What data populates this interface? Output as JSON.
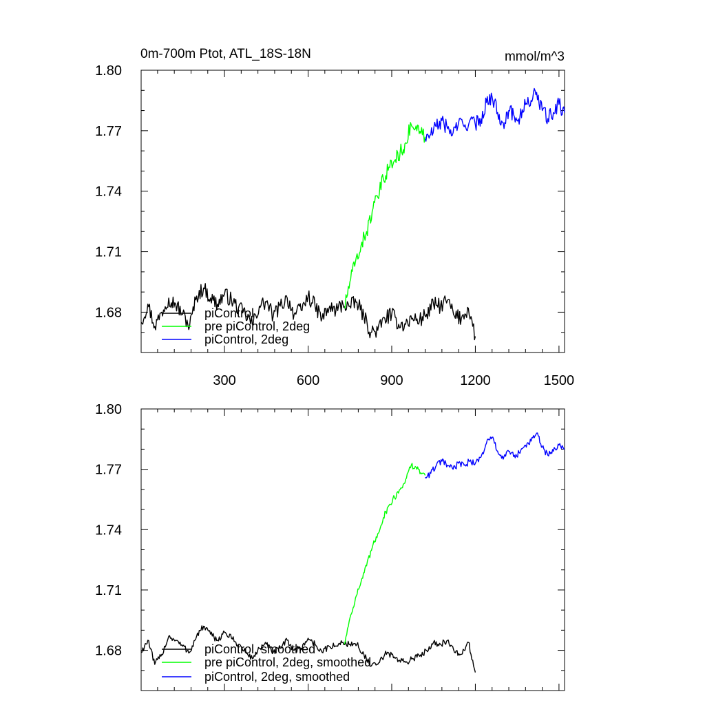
{
  "chart_data": [
    {
      "type": "line",
      "title": "0m-700m Ptot, ATL_18S-18N",
      "units": "mmol/m^3",
      "xlim": [
        1,
        1520
      ],
      "ylim": [
        1.66,
        1.8
      ],
      "x_ticks": [
        300,
        600,
        900,
        1200,
        1500
      ],
      "x_tick_labels": [
        "300",
        "600",
        "900",
        "1200",
        "1500"
      ],
      "y_ticks": [
        1.68,
        1.71,
        1.74,
        1.77,
        1.8
      ],
      "y_tick_labels": [
        "1.68",
        "1.71",
        "1.74",
        "1.77",
        "1.80"
      ],
      "legend_position": "bottom-left",
      "grid": false,
      "series": [
        {
          "name": "piControl",
          "color": "#000000",
          "x": [
            1,
            25,
            50,
            75,
            100,
            125,
            150,
            175,
            200,
            225,
            250,
            275,
            300,
            325,
            350,
            375,
            400,
            425,
            450,
            475,
            500,
            525,
            550,
            575,
            600,
            625,
            650,
            675,
            700,
            725,
            750,
            775,
            800,
            825,
            850,
            875,
            900,
            925,
            950,
            975,
            1000,
            1025,
            1050,
            1075,
            1100,
            1125,
            1150,
            1175,
            1200
          ],
          "y": [
            1.675,
            1.684,
            1.673,
            1.68,
            1.687,
            1.684,
            1.679,
            1.673,
            1.688,
            1.692,
            1.687,
            1.684,
            1.689,
            1.686,
            1.682,
            1.679,
            1.674,
            1.683,
            1.685,
            1.678,
            1.683,
            1.687,
            1.679,
            1.681,
            1.688,
            1.683,
            1.677,
            1.682,
            1.681,
            1.684,
            1.683,
            1.685,
            1.678,
            1.67,
            1.671,
            1.677,
            1.679,
            1.674,
            1.674,
            1.677,
            1.676,
            1.679,
            1.684,
            1.683,
            1.686,
            1.678,
            1.677,
            1.682,
            1.668
          ]
        },
        {
          "name": "pre piControl, 2deg",
          "color": "#00ff00",
          "x": [
            730,
            750,
            770,
            790,
            810,
            830,
            850,
            870,
            890,
            910,
            930,
            950,
            970,
            990,
            1010,
            1020
          ],
          "y": [
            1.682,
            1.695,
            1.705,
            1.713,
            1.72,
            1.73,
            1.737,
            1.746,
            1.752,
            1.755,
            1.759,
            1.764,
            1.773,
            1.77,
            1.768,
            1.767
          ]
        },
        {
          "name": "piControl, 2deg",
          "color": "#0000ff",
          "x": [
            1020,
            1040,
            1060,
            1080,
            1100,
            1120,
            1140,
            1160,
            1180,
            1200,
            1220,
            1240,
            1260,
            1280,
            1300,
            1320,
            1340,
            1360,
            1380,
            1400,
            1420,
            1440,
            1460,
            1480,
            1500,
            1520
          ],
          "y": [
            1.766,
            1.768,
            1.772,
            1.775,
            1.771,
            1.769,
            1.774,
            1.772,
            1.775,
            1.773,
            1.776,
            1.784,
            1.787,
            1.779,
            1.774,
            1.78,
            1.777,
            1.777,
            1.783,
            1.785,
            1.789,
            1.78,
            1.776,
            1.779,
            1.783,
            1.779
          ]
        }
      ]
    },
    {
      "type": "line",
      "title": "",
      "xlim": [
        1,
        1520
      ],
      "ylim": [
        1.66,
        1.8
      ],
      "x_ticks": [
        300,
        600,
        900,
        1200,
        1500
      ],
      "y_ticks": [
        1.68,
        1.71,
        1.74,
        1.77,
        1.8
      ],
      "y_tick_labels": [
        "1.68",
        "1.71",
        "1.74",
        "1.77",
        "1.80"
      ],
      "legend_position": "bottom-left",
      "grid": false,
      "series": [
        {
          "name": "piControl, smoothed",
          "color": "#000000",
          "x": [
            1,
            25,
            50,
            75,
            100,
            125,
            150,
            175,
            200,
            225,
            250,
            275,
            300,
            325,
            350,
            375,
            400,
            425,
            450,
            475,
            500,
            525,
            550,
            575,
            600,
            625,
            650,
            675,
            700,
            725,
            750,
            775,
            800,
            825,
            850,
            875,
            900,
            925,
            950,
            975,
            1000,
            1025,
            1050,
            1075,
            1100,
            1125,
            1150,
            1175,
            1200
          ],
          "y": [
            1.679,
            1.685,
            1.673,
            1.678,
            1.687,
            1.685,
            1.682,
            1.679,
            1.687,
            1.692,
            1.688,
            1.685,
            1.689,
            1.686,
            1.683,
            1.679,
            1.676,
            1.681,
            1.683,
            1.679,
            1.681,
            1.685,
            1.68,
            1.681,
            1.686,
            1.683,
            1.679,
            1.682,
            1.682,
            1.684,
            1.683,
            1.683,
            1.678,
            1.672,
            1.673,
            1.678,
            1.678,
            1.675,
            1.674,
            1.676,
            1.677,
            1.68,
            1.684,
            1.683,
            1.685,
            1.679,
            1.678,
            1.684,
            1.669
          ]
        },
        {
          "name": "pre piControl, 2deg, smoothed",
          "color": "#00ff00",
          "x": [
            730,
            750,
            770,
            790,
            810,
            830,
            850,
            870,
            890,
            910,
            930,
            950,
            970,
            990,
            1010,
            1020
          ],
          "y": [
            1.683,
            1.696,
            1.706,
            1.714,
            1.722,
            1.731,
            1.738,
            1.746,
            1.752,
            1.756,
            1.76,
            1.765,
            1.772,
            1.77,
            1.768,
            1.767
          ]
        },
        {
          "name": "piControl, 2deg, smoothed",
          "color": "#0000ff",
          "x": [
            1020,
            1040,
            1060,
            1080,
            1100,
            1120,
            1140,
            1160,
            1180,
            1200,
            1220,
            1240,
            1260,
            1280,
            1300,
            1320,
            1340,
            1360,
            1380,
            1400,
            1420,
            1440,
            1460,
            1480,
            1500,
            1520
          ],
          "y": [
            1.766,
            1.768,
            1.772,
            1.774,
            1.772,
            1.77,
            1.773,
            1.772,
            1.774,
            1.773,
            1.776,
            1.783,
            1.786,
            1.779,
            1.775,
            1.779,
            1.777,
            1.778,
            1.782,
            1.784,
            1.788,
            1.781,
            1.777,
            1.779,
            1.782,
            1.78
          ]
        }
      ]
    }
  ]
}
